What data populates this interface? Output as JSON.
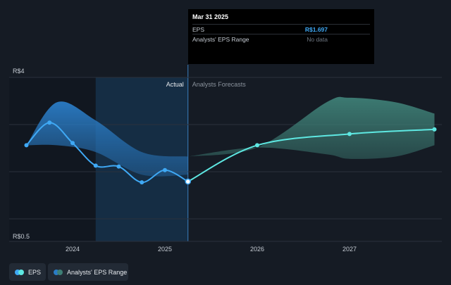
{
  "chart_data": {
    "type": "line",
    "y_top_label": "R$4",
    "y_bottom_label": "R$0.5",
    "x_tick_labels": [
      "2024",
      "2025",
      "2026",
      "2027"
    ],
    "section_actual": "Actual",
    "section_forecast": "Analysts Forecasts",
    "eps_actual": {
      "name": "EPS",
      "x": [
        2023.5,
        2023.75,
        2024.0,
        2024.25,
        2024.5,
        2024.75,
        2025.0,
        2025.25
      ],
      "y": [
        2.5,
        3.0,
        2.55,
        2.05,
        2.03,
        1.68,
        1.95,
        1.697
      ]
    },
    "eps_forecast": {
      "x": [
        2025.25,
        2026.0,
        2027.0,
        2027.92
      ],
      "y": [
        1.697,
        2.5,
        2.75,
        2.85
      ]
    },
    "range_actual": {
      "x": [
        2023.5,
        2023.83,
        2024.25,
        2024.75,
        2025.25
      ],
      "upper": [
        2.5,
        3.45,
        3.05,
        2.35,
        2.25
      ],
      "lower": [
        2.5,
        2.5,
        2.35,
        1.85,
        1.85
      ]
    },
    "range_forecast": {
      "x": [
        2025.25,
        2026.0,
        2026.75,
        2027.0,
        2027.5,
        2027.92
      ],
      "upper": [
        2.25,
        2.45,
        3.45,
        3.55,
        3.45,
        3.2
      ],
      "lower": [
        2.25,
        2.45,
        2.3,
        2.2,
        2.25,
        2.5
      ]
    },
    "colors": {
      "eps_line": "#3fa9f5",
      "forecast_line": "#5ee8e2",
      "range_past": "#2a7cc6",
      "range_forecast": "#3e7f76",
      "highlight_band": "#1a3f63"
    }
  },
  "tooltip": {
    "date": "Mar 31 2025",
    "rows": [
      {
        "label": "EPS",
        "value": "R$1.697"
      },
      {
        "label": "Analysts' EPS Range",
        "value": "No data"
      }
    ]
  },
  "legend": {
    "eps_label": "EPS",
    "range_label": "Analysts' EPS Range"
  }
}
